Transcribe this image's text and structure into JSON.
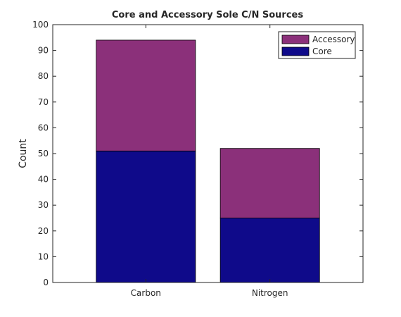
{
  "chart_data": {
    "type": "bar",
    "stacked": true,
    "title": "Core and Accessory Sole C/N Sources",
    "xlabel": "",
    "ylabel": "Count",
    "categories": [
      "Carbon",
      "Nitrogen"
    ],
    "series": [
      {
        "name": "Core",
        "values": [
          51,
          25
        ],
        "color": "#0f0a8a"
      },
      {
        "name": "Accessory",
        "values": [
          43,
          27
        ],
        "color": "#8b307a"
      }
    ],
    "ylim": [
      0,
      100
    ],
    "yticks": [
      0,
      10,
      20,
      30,
      40,
      50,
      60,
      70,
      80,
      90,
      100
    ],
    "grid": false,
    "legend_position": "top-right",
    "legend_order": [
      "Accessory",
      "Core"
    ]
  }
}
